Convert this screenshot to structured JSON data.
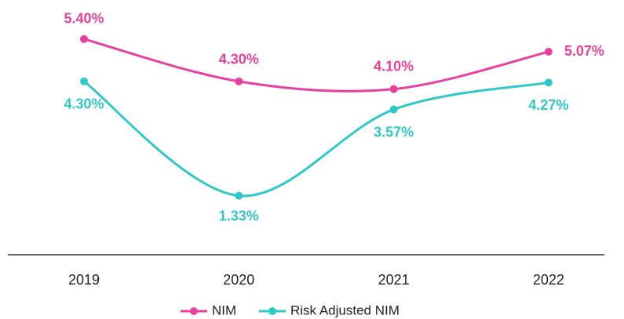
{
  "chart_data": {
    "type": "line",
    "categories": [
      "2019",
      "2020",
      "2021",
      "2022"
    ],
    "series": [
      {
        "name": "NIM",
        "color": "#e8409e",
        "values": [
          5.4,
          4.3,
          4.1,
          5.07
        ],
        "value_labels": [
          "5.40%",
          "4.30%",
          "4.10%",
          "5.07%"
        ]
      },
      {
        "name": "Risk Adjusted NIM",
        "color": "#2ec8c6",
        "values": [
          4.3,
          1.33,
          3.57,
          4.27
        ],
        "value_labels": [
          "4.30%",
          "1.33%",
          "3.57%",
          "4.27%"
        ]
      }
    ],
    "ylim": [
      0,
      5.6
    ]
  }
}
